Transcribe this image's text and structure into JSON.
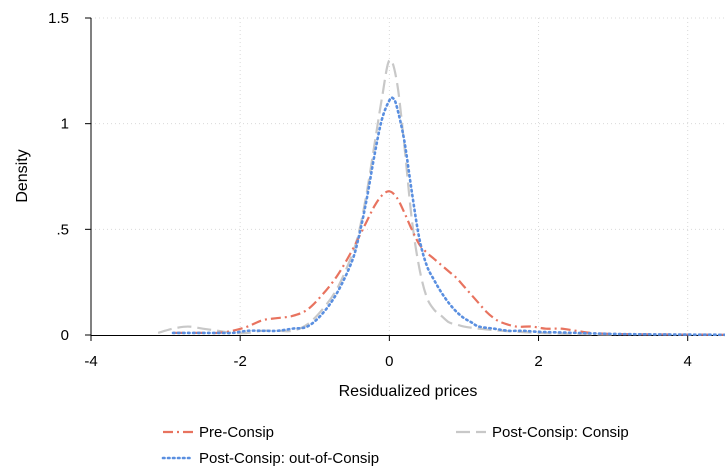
{
  "chart_data": {
    "type": "line",
    "title": "",
    "xlabel": "Residualized prices",
    "ylabel": "Density",
    "xlim": [
      -4,
      4.5
    ],
    "ylim": [
      0,
      1.5
    ],
    "xticks": [
      -4,
      -2,
      0,
      2,
      4
    ],
    "xtick_labels": [
      "-4",
      "-2",
      "0",
      "2",
      "4"
    ],
    "yticks": [
      0,
      0.5,
      1,
      1.5
    ],
    "ytick_labels": [
      "0",
      ".5",
      "1",
      "1.5"
    ],
    "grid": true,
    "legend_position": "bottom",
    "series": [
      {
        "name": "Pre-Consip",
        "color": "#e8735f",
        "dash": "dash-dot",
        "x": [
          -2.9,
          -2.7,
          -2.5,
          -2.3,
          -2.1,
          -1.9,
          -1.7,
          -1.5,
          -1.3,
          -1.1,
          -0.9,
          -0.7,
          -0.5,
          -0.3,
          -0.2,
          -0.1,
          0,
          0.1,
          0.2,
          0.3,
          0.4,
          0.5,
          0.6,
          0.7,
          0.8,
          0.9,
          1.0,
          1.1,
          1.2,
          1.3,
          1.4,
          1.5,
          1.7,
          1.9,
          2.1,
          2.3,
          2.5,
          2.7,
          3.0,
          3.5,
          4.0,
          4.5
        ],
        "y": [
          0.01,
          0.01,
          0.01,
          0.01,
          0.02,
          0.04,
          0.07,
          0.08,
          0.09,
          0.12,
          0.19,
          0.28,
          0.4,
          0.54,
          0.61,
          0.66,
          0.68,
          0.65,
          0.58,
          0.5,
          0.43,
          0.39,
          0.36,
          0.33,
          0.3,
          0.27,
          0.23,
          0.19,
          0.15,
          0.11,
          0.08,
          0.06,
          0.04,
          0.04,
          0.03,
          0.03,
          0.02,
          0.01,
          0.005,
          0.003,
          0.002,
          0.001
        ]
      },
      {
        "name": "Post-Consip: Consip",
        "color": "#c8c8c8",
        "dash": "long-dash",
        "x": [
          -3.1,
          -2.9,
          -2.7,
          -2.5,
          -2.3,
          -2.1,
          -1.9,
          -1.7,
          -1.5,
          -1.3,
          -1.1,
          -0.9,
          -0.7,
          -0.5,
          -0.4,
          -0.3,
          -0.2,
          -0.1,
          0,
          0.1,
          0.2,
          0.3,
          0.4,
          0.5,
          0.6,
          0.7,
          0.8,
          0.9,
          1.0,
          1.2,
          1.5,
          2.0,
          2.5,
          3.0
        ],
        "y": [
          0.01,
          0.03,
          0.04,
          0.03,
          0.02,
          0.01,
          0.01,
          0.02,
          0.02,
          0.02,
          0.05,
          0.12,
          0.22,
          0.38,
          0.5,
          0.68,
          0.9,
          1.12,
          1.3,
          1.2,
          0.9,
          0.55,
          0.32,
          0.18,
          0.12,
          0.09,
          0.06,
          0.05,
          0.04,
          0.03,
          0.02,
          0.01,
          0.005,
          0.002
        ]
      },
      {
        "name": "Post-Consip: out-of-Consip",
        "color": "#5a8fe0",
        "dash": "dotted",
        "x": [
          -2.9,
          -2.7,
          -2.5,
          -2.3,
          -2.1,
          -1.9,
          -1.7,
          -1.5,
          -1.3,
          -1.1,
          -0.9,
          -0.7,
          -0.5,
          -0.4,
          -0.3,
          -0.2,
          -0.1,
          0,
          0.05,
          0.1,
          0.2,
          0.3,
          0.4,
          0.5,
          0.6,
          0.7,
          0.8,
          0.9,
          1.0,
          1.1,
          1.2,
          1.4,
          1.6,
          1.8,
          2.0,
          2.5,
          3.0,
          3.5,
          4.0,
          4.5
        ],
        "y": [
          0.01,
          0.01,
          0.01,
          0.01,
          0.01,
          0.02,
          0.02,
          0.02,
          0.03,
          0.04,
          0.1,
          0.2,
          0.35,
          0.48,
          0.65,
          0.85,
          1.02,
          1.11,
          1.12,
          1.08,
          0.92,
          0.68,
          0.46,
          0.33,
          0.26,
          0.2,
          0.15,
          0.11,
          0.08,
          0.06,
          0.04,
          0.03,
          0.02,
          0.02,
          0.015,
          0.01,
          0.005,
          0.003,
          0.002,
          0.001
        ]
      }
    ]
  },
  "legend": [
    {
      "label": "Pre-Consip",
      "color": "#e8735f",
      "dash": "dash-dot"
    },
    {
      "label": "Post-Consip: Consip",
      "color": "#c8c8c8",
      "dash": "long-dash"
    },
    {
      "label": "Post-Consip: out-of-Consip",
      "color": "#5a8fe0",
      "dash": "dotted"
    }
  ]
}
